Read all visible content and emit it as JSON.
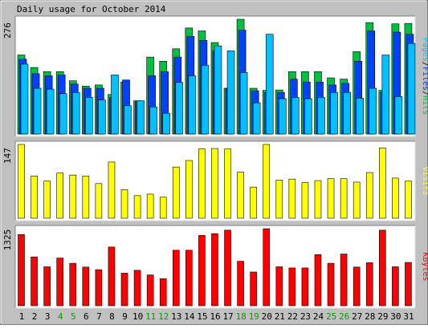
{
  "chart_data": [
    {
      "type": "bar",
      "title": "Daily usage for October 2014",
      "ymax_label": "276",
      "categories": [
        "1",
        "2",
        "3",
        "4",
        "5",
        "6",
        "7",
        "8",
        "9",
        "10",
        "11",
        "12",
        "13",
        "14",
        "15",
        "16",
        "17",
        "18",
        "19",
        "20",
        "21",
        "22",
        "23",
        "24",
        "25",
        "26",
        "27",
        "28",
        "29",
        "30",
        "31"
      ],
      "weekend_days": [
        "4",
        "5",
        "11",
        "12",
        "18",
        "19",
        "25",
        "26"
      ],
      "legend": [
        "Pages",
        "/",
        "Files",
        "/",
        "Hits"
      ],
      "legend_colors": [
        "#00c0ff",
        "#000000",
        "#0040ff",
        "#000000",
        "#00c040"
      ],
      "series": [
        {
          "name": "Hits",
          "color": "#00c040",
          "values": [
            190,
            160,
            150,
            150,
            128,
            115,
            118,
            95,
            125,
            80,
            185,
            175,
            205,
            255,
            248,
            220,
            110,
            276,
            110,
            105,
            106,
            150,
            150,
            150,
            135,
            132,
            198,
            268,
            105,
            265,
            266
          ]
        },
        {
          "name": "Files",
          "color": "#0040ff",
          "values": [
            180,
            145,
            140,
            142,
            120,
            110,
            110,
            88,
            130,
            78,
            140,
            150,
            185,
            235,
            225,
            200,
            110,
            250,
            104,
            100,
            100,
            132,
            125,
            125,
            118,
            122,
            175,
            248,
            100,
            245,
            240
          ]
        },
        {
          "name": "Pages",
          "color": "#00c0ff",
          "values": [
            168,
            110,
            108,
            97,
            100,
            88,
            82,
            142,
            68,
            80,
            65,
            50,
            124,
            140,
            165,
            212,
            200,
            148,
            75,
            240,
            85,
            88,
            85,
            88,
            100,
            100,
            86,
            110,
            190,
            90,
            218
          ]
        }
      ]
    },
    {
      "type": "bar",
      "ymax_label": "147",
      "legend": [
        "Visits"
      ],
      "legend_colors": [
        "#ffff00"
      ],
      "series": [
        {
          "name": "Visits",
          "color": "#ffff00",
          "values": [
            147,
            84,
            74,
            90,
            86,
            84,
            69,
            112,
            57,
            45,
            48,
            42,
            102,
            115,
            138,
            139,
            138,
            92,
            62,
            147,
            76,
            78,
            71,
            75,
            79,
            79,
            72,
            91,
            140,
            80,
            74
          ]
        }
      ]
    },
    {
      "type": "bar",
      "ymax_label": "1325",
      "legend": [
        "KBytes"
      ],
      "legend_colors": [
        "#ff0000"
      ],
      "series": [
        {
          "name": "KBytes",
          "color": "#ff0000",
          "values": [
            1225,
            840,
            670,
            820,
            730,
            665,
            620,
            1010,
            560,
            610,
            530,
            465,
            955,
            955,
            1210,
            1240,
            1300,
            765,
            580,
            1325,
            670,
            650,
            650,
            880,
            730,
            890,
            665,
            740,
            1300,
            670,
            745
          ]
        }
      ]
    }
  ]
}
